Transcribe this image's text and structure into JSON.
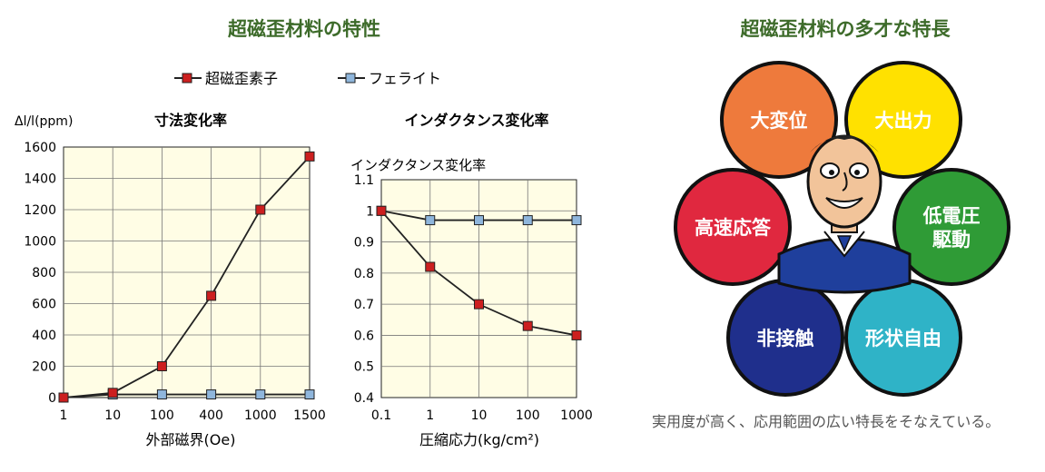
{
  "left_title": "超磁歪材料の特性",
  "right_title": "超磁歪材料の多才な特長",
  "legend": [
    {
      "label": "超磁歪素子",
      "color": "#cc1f1f"
    },
    {
      "label": "フェライト",
      "color": "#8fb6dc"
    }
  ],
  "features": [
    {
      "label": "大変位",
      "color": "#ee7a3c"
    },
    {
      "label": "大出力",
      "color": "#ffe100"
    },
    {
      "label": "高速応答",
      "color": "#e0283f"
    },
    {
      "label": "低電圧\n駆動",
      "color": "#2f9b36"
    },
    {
      "label": "非接触",
      "color": "#1f2f8c"
    },
    {
      "label": "形状自由",
      "color": "#2fb3c7"
    }
  ],
  "caption": "実用度が高く、応用範囲の広い特長をそなえている。",
  "chart_data": [
    {
      "type": "line",
      "title": "寸法変化率",
      "ylabel": "Δl/l(ppm)",
      "xlabel": "外部磁界(Oe)",
      "categories": [
        "1",
        "10",
        "100",
        "400",
        "1000",
        "1500"
      ],
      "ylim": [
        0,
        1600
      ],
      "yticks": [
        0,
        200,
        400,
        600,
        800,
        1000,
        1200,
        1400,
        1600
      ],
      "grid": true,
      "series": [
        {
          "name": "超磁歪素子",
          "values": [
            0,
            30,
            200,
            650,
            1200,
            1540
          ]
        },
        {
          "name": "フェライト",
          "values": [
            0,
            20,
            20,
            20,
            20,
            20
          ]
        }
      ]
    },
    {
      "type": "line",
      "title": "インダクタンス変化率",
      "ylabel": "インダクタンス変化率",
      "xlabel": "圧縮応力(kg/cm²)",
      "categories": [
        "0.1",
        "1",
        "10",
        "100",
        "1000"
      ],
      "ylim": [
        0.4,
        1.1
      ],
      "yticks": [
        "0.4",
        "0.5",
        "0.6",
        "0.7",
        "0.8",
        "0.9",
        "1",
        "1.1"
      ],
      "grid": true,
      "series": [
        {
          "name": "超磁歪素子",
          "values": [
            1.0,
            0.82,
            0.7,
            0.63,
            0.6
          ]
        },
        {
          "name": "フェライト",
          "values": [
            1.0,
            0.97,
            0.97,
            0.97,
            0.97
          ]
        }
      ]
    }
  ]
}
